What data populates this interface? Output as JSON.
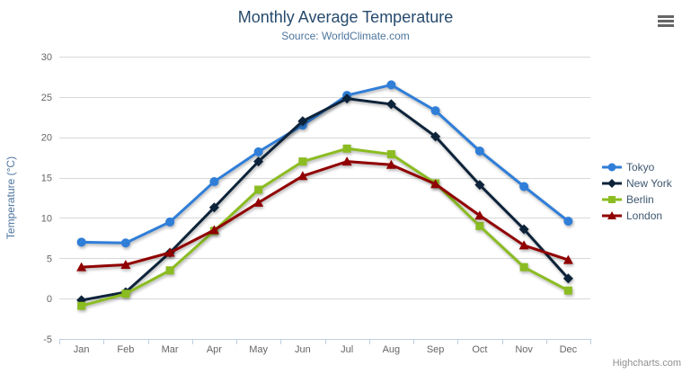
{
  "chart": {
    "credits_label": "Highcharts.com"
  },
  "icons": {
    "export_menu": "hamburger-menu-icon"
  },
  "colors": {
    "title": "#274b6d",
    "subtitle": "#4d759e",
    "axis_title": "#4d759e",
    "tick_label": "#666666",
    "grid": "#d8d8d8",
    "axis_line": "#c0d0e0",
    "legend_text": "#3e576f",
    "credits": "#909090",
    "export_icon": "#666666"
  },
  "chart_data": {
    "type": "line",
    "title": "Monthly Average Temperature",
    "subtitle": "Source: WorldClimate.com",
    "xlabel": "",
    "ylabel": "Temperature (°C)",
    "ylim": [
      -5,
      30
    ],
    "y_ticks": [
      30,
      25,
      20,
      15,
      10,
      5,
      0,
      -5
    ],
    "grid": "horizontal",
    "legend_position": "right",
    "categories": [
      "Jan",
      "Feb",
      "Mar",
      "Apr",
      "May",
      "Jun",
      "Jul",
      "Aug",
      "Sep",
      "Oct",
      "Nov",
      "Dec"
    ],
    "series": [
      {
        "name": "Tokyo",
        "color": "#2f7ed8",
        "marker": "circle",
        "values": [
          7.0,
          6.9,
          9.5,
          14.5,
          18.2,
          21.5,
          25.2,
          26.5,
          23.3,
          18.3,
          13.9,
          9.6
        ]
      },
      {
        "name": "New York",
        "color": "#0d233a",
        "marker": "diamond",
        "values": [
          -0.2,
          0.8,
          5.7,
          11.3,
          17.0,
          22.0,
          24.8,
          24.1,
          20.1,
          14.1,
          8.6,
          2.5
        ]
      },
      {
        "name": "Berlin",
        "color": "#8bbc21",
        "marker": "square",
        "values": [
          -0.9,
          0.6,
          3.5,
          8.4,
          13.5,
          17.0,
          18.6,
          17.9,
          14.3,
          9.0,
          3.9,
          1.0
        ]
      },
      {
        "name": "London",
        "color": "#910000",
        "marker": "triangle",
        "values": [
          3.9,
          4.2,
          5.7,
          8.5,
          11.9,
          15.2,
          17.0,
          16.6,
          14.2,
          10.3,
          6.6,
          4.8
        ]
      }
    ]
  }
}
